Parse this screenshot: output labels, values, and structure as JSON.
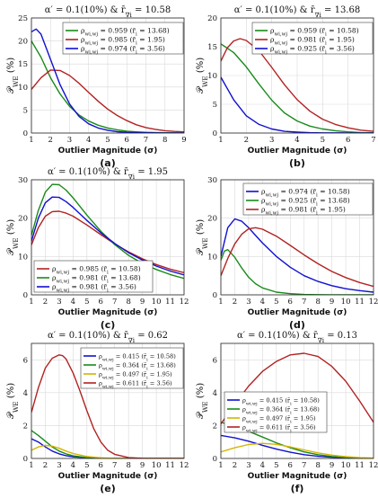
{
  "figure": {
    "xlabel": "Outlier Magnitude (σ)",
    "ylabel": "𝒫_WE (%)"
  },
  "chart_data": [
    {
      "panel": "(a)",
      "type": "line",
      "title": "α′ = 0.1(10%) & r̄_∇i = 10.58",
      "xlabel": "Outlier Magnitude (σ)",
      "ylabel": "𝒫_WE (%)",
      "xlim": [
        1,
        9
      ],
      "ylim": [
        0,
        25
      ],
      "xticks": [
        1,
        2,
        3,
        4,
        5,
        6,
        7,
        8,
        9
      ],
      "yticks": [
        0,
        5,
        10,
        15,
        20,
        25
      ],
      "grid": true,
      "legend_position": "top-right",
      "series": [
        {
          "name": "ρ_wi,wj = 0.959 (r̄_i = 13.68)",
          "color": "#1a8a1a",
          "x": [
            1,
            1.5,
            2,
            2.5,
            3,
            3.5,
            4,
            4.5,
            5,
            5.5,
            6,
            6.5,
            7,
            7.5,
            8,
            8.5,
            9
          ],
          "y": [
            20,
            16.5,
            12,
            8.5,
            5.8,
            3.9,
            2.6,
            1.7,
            1.1,
            0.7,
            0.4,
            0.25,
            0.15,
            0.1,
            0.05,
            0.03,
            0.02
          ]
        },
        {
          "name": "ρ_wi,wj = 0.985 (r̄_i = 1.95)",
          "color": "#b22222",
          "x": [
            1,
            1.5,
            2,
            2.5,
            3,
            3.5,
            4,
            4.5,
            5,
            5.5,
            6,
            6.5,
            7,
            7.5,
            8,
            8.5,
            9
          ],
          "y": [
            9.5,
            12,
            13.7,
            13.6,
            12.5,
            10.8,
            8.8,
            6.9,
            5.2,
            3.8,
            2.7,
            1.8,
            1.2,
            0.8,
            0.5,
            0.35,
            0.25
          ]
        },
        {
          "name": "ρ_wi,wj = 0.974 (r̄_i = 3.56)",
          "color": "#1010d0",
          "x": [
            1,
            1.25,
            1.5,
            2,
            2.5,
            3,
            3.5,
            4,
            4.5,
            5,
            5.5,
            6,
            7,
            8,
            9
          ],
          "y": [
            22,
            22.6,
            21.5,
            16,
            10.5,
            6.3,
            3.6,
            2,
            1.1,
            0.6,
            0.3,
            0.15,
            0.05,
            0.02,
            0.01
          ]
        }
      ]
    },
    {
      "panel": "(b)",
      "type": "line",
      "title": "α′ = 0.1(10%) & r̄_∇i = 13.68",
      "xlabel": "Outlier Magnitude (σ)",
      "ylabel": "𝒫_WE (%)",
      "xlim": [
        1,
        7
      ],
      "ylim": [
        0,
        20
      ],
      "xticks": [
        1,
        2,
        3,
        4,
        5,
        6,
        7
      ],
      "yticks": [
        0,
        5,
        10,
        15,
        20
      ],
      "grid": true,
      "legend_position": "top-right",
      "series": [
        {
          "name": "ρ_wi,wj = 0.959 (r̄_i = 10.58)",
          "color": "#1a8a1a",
          "x": [
            1,
            1.5,
            2,
            2.5,
            3,
            3.5,
            4,
            4.5,
            5,
            5.5,
            6,
            6.5,
            7
          ],
          "y": [
            15.5,
            14,
            11.5,
            8.5,
            5.7,
            3.5,
            2.1,
            1.2,
            0.7,
            0.4,
            0.2,
            0.1,
            0.05
          ]
        },
        {
          "name": "ρ_wi,wj = 0.981 (r̄_i = 1.95)",
          "color": "#b22222",
          "x": [
            1,
            1.25,
            1.5,
            1.75,
            2,
            2.5,
            3,
            3.5,
            4,
            4.5,
            5,
            5.5,
            6,
            6.5,
            7
          ],
          "y": [
            12.5,
            14.8,
            16,
            16.4,
            16.1,
            14.3,
            11.4,
            8.4,
            5.8,
            3.8,
            2.4,
            1.5,
            0.9,
            0.5,
            0.3
          ]
        },
        {
          "name": "ρ_wi,wj = 0.925 (r̄_i = 3.56)",
          "color": "#1010d0",
          "x": [
            1,
            1.5,
            2,
            2.5,
            3,
            3.5,
            4,
            4.5,
            5,
            6,
            7
          ],
          "y": [
            9.7,
            5.8,
            3,
            1.5,
            0.7,
            0.3,
            0.15,
            0.07,
            0.03,
            0.01,
            0
          ]
        }
      ]
    },
    {
      "panel": "(c)",
      "type": "line",
      "title": "α′ = 0.1(10%) & r̄_∇i = 1.95",
      "xlabel": "Outlier Magnitude (σ)",
      "ylabel": "𝒫_WE (%)",
      "xlim": [
        1,
        12
      ],
      "ylim": [
        0,
        30
      ],
      "xticks": [
        1,
        2,
        3,
        4,
        5,
        6,
        7,
        8,
        9,
        10,
        11,
        12
      ],
      "yticks": [
        0,
        10,
        20,
        30
      ],
      "grid": true,
      "legend_position": "bottom-left",
      "series": [
        {
          "name": "ρ_wi,wj = 0.985 (r̄_i = 10.58)",
          "color": "#b22222",
          "x": [
            1,
            1.5,
            2,
            2.5,
            3,
            3.5,
            4,
            5,
            6,
            7,
            8,
            9,
            10,
            11,
            12
          ],
          "y": [
            13,
            17.5,
            20.5,
            21.7,
            21.8,
            21.3,
            20.5,
            18.2,
            15.7,
            13.3,
            11.2,
            9.4,
            7.9,
            6.7,
            5.8
          ]
        },
        {
          "name": "ρ_wi,wj = 0.981 (r̄_i = 13.68)",
          "color": "#1a8a1a",
          "x": [
            1,
            1.5,
            2,
            2.5,
            3,
            3.5,
            4,
            5,
            6,
            7,
            8,
            9,
            10,
            11,
            12
          ],
          "y": [
            15.5,
            22,
            26.8,
            28.8,
            28.7,
            27.3,
            25.3,
            20.8,
            16.6,
            13.1,
            10.3,
            8.2,
            6.6,
            5.3,
            4.3
          ]
        },
        {
          "name": "ρ_wi,wj = 0.981 (r̄_i = 3.56)",
          "color": "#1010d0",
          "x": [
            1,
            1.5,
            2,
            2.5,
            3,
            3.5,
            4,
            5,
            6,
            7,
            8,
            9,
            10,
            11,
            12
          ],
          "y": [
            14,
            20,
            24,
            25.5,
            25.4,
            24.3,
            22.8,
            19.4,
            16.2,
            13.4,
            11,
            9.1,
            7.5,
            6.2,
            5.2
          ]
        }
      ]
    },
    {
      "panel": "(d)",
      "type": "line",
      "title": "",
      "xlabel": "Outlier Magnitude (σ)",
      "ylabel": "𝒫_WE (%)",
      "xlim": [
        1,
        12
      ],
      "ylim": [
        0,
        30
      ],
      "xticks": [
        1,
        2,
        3,
        4,
        5,
        6,
        7,
        8,
        9,
        10,
        11,
        12
      ],
      "yticks": [
        0,
        10,
        20,
        30
      ],
      "grid": true,
      "legend_position": "top-right",
      "series": [
        {
          "name": "ρ_wi,wj = 0.974 (r̄_i = 10.58)",
          "color": "#1010d0",
          "x": [
            1,
            1.5,
            2,
            2.5,
            3,
            3.5,
            4,
            5,
            6,
            7,
            8,
            9,
            10,
            11,
            12
          ],
          "y": [
            10,
            17.5,
            19.8,
            19.2,
            17.5,
            15.5,
            13.5,
            10,
            7.2,
            5,
            3.5,
            2.4,
            1.6,
            1.1,
            0.7
          ]
        },
        {
          "name": "ρ_wi,wj = 0.925 (r̄_i = 13.68)",
          "color": "#1a8a1a",
          "x": [
            1,
            1.25,
            1.5,
            2,
            2.5,
            3,
            3.5,
            4,
            5,
            6,
            7,
            8,
            9,
            10,
            11,
            12
          ],
          "y": [
            9,
            11.4,
            11.8,
            9.8,
            7,
            4.6,
            2.9,
            1.8,
            0.7,
            0.3,
            0.1,
            0.05,
            0.02,
            0,
            0,
            0
          ]
        },
        {
          "name": "ρ_wi,wj = 0.981 (r̄_i = 1.95)",
          "color": "#b22222",
          "x": [
            1,
            1.5,
            2,
            2.5,
            3,
            3.5,
            4,
            5,
            6,
            7,
            8,
            9,
            10,
            11,
            12
          ],
          "y": [
            5,
            9.5,
            13.3,
            15.8,
            17.2,
            17.5,
            17.1,
            15.3,
            12.9,
            10.4,
            8.1,
            6.1,
            4.5,
            3.2,
            2.2
          ]
        }
      ]
    },
    {
      "panel": "(e)",
      "type": "line",
      "title": "α′ = 0.1(10%) & r̄_∇i = 0.62",
      "xlabel": "Outlier Magnitude (σ)",
      "ylabel": "𝒫_WE (%)",
      "xlim": [
        1,
        12
      ],
      "ylim": [
        0,
        7
      ],
      "xticks": [
        1,
        2,
        3,
        4,
        5,
        6,
        7,
        8,
        9,
        10,
        11,
        12
      ],
      "yticks": [
        0,
        2,
        4,
        6
      ],
      "grid": true,
      "legend_position": "top-right",
      "series": [
        {
          "name": "ρ_wi,wj = 0.415 (r̄_i = 10.58)",
          "color": "#1010d0",
          "x": [
            1,
            1.5,
            2,
            2.5,
            3,
            3.5,
            4,
            5,
            6,
            7,
            8,
            9,
            10,
            11,
            12
          ],
          "y": [
            1.2,
            1,
            0.7,
            0.45,
            0.28,
            0.17,
            0.1,
            0.04,
            0.01,
            0,
            0,
            0,
            0,
            0,
            0
          ]
        },
        {
          "name": "ρ_wi,wj = 0.364 (r̄_i = 13.68)",
          "color": "#1a8a1a",
          "x": [
            1,
            1.5,
            2,
            2.5,
            3,
            3.5,
            4,
            5,
            6,
            7,
            8,
            9,
            10,
            11,
            12
          ],
          "y": [
            1.7,
            1.4,
            1.05,
            0.7,
            0.45,
            0.28,
            0.16,
            0.05,
            0.02,
            0,
            0,
            0,
            0,
            0,
            0
          ]
        },
        {
          "name": "ρ_wi,wj = 0.497 (r̄_i = 1.95)",
          "color": "#d4b400",
          "x": [
            1,
            1.5,
            2,
            2.5,
            3,
            3.5,
            4,
            5,
            6,
            7,
            8,
            9,
            10,
            11,
            12
          ],
          "y": [
            0.5,
            0.7,
            0.8,
            0.75,
            0.62,
            0.45,
            0.3,
            0.12,
            0.04,
            0.01,
            0,
            0,
            0,
            0,
            0
          ]
        },
        {
          "name": "ρ_wi,wj = 0.611 (r̄_i = 3.56)",
          "color": "#b22222",
          "x": [
            1,
            1.5,
            2,
            2.5,
            3,
            3.25,
            3.5,
            4,
            4.5,
            5,
            5.5,
            6,
            6.5,
            7,
            8,
            9,
            10,
            11,
            12
          ],
          "y": [
            2.8,
            4.3,
            5.5,
            6.1,
            6.3,
            6.25,
            6.05,
            5.2,
            4.1,
            2.9,
            1.8,
            1,
            0.5,
            0.25,
            0.05,
            0.01,
            0,
            0,
            0
          ]
        }
      ]
    },
    {
      "panel": "(f)",
      "type": "line",
      "title": "α′ = 0.1(10%) & r̄_∇i = 0.13",
      "xlabel": "Outlier Magnitude (σ)",
      "ylabel": "𝒫_WE (%)",
      "xlim": [
        1,
        12
      ],
      "ylim": [
        0,
        7
      ],
      "xticks": [
        1,
        2,
        3,
        4,
        5,
        6,
        7,
        8,
        9,
        10,
        11,
        12
      ],
      "yticks": [
        0,
        2,
        4,
        6
      ],
      "grid": true,
      "legend_position": "middle-left",
      "series": [
        {
          "name": "ρ_wi,wj = 0.415 (r̄_i = 10.58)",
          "color": "#1010d0",
          "x": [
            1,
            2,
            3,
            4,
            5,
            6,
            7,
            8,
            9,
            10,
            11,
            12
          ],
          "y": [
            1.4,
            1.25,
            1.05,
            0.8,
            0.57,
            0.38,
            0.23,
            0.13,
            0.07,
            0.04,
            0.02,
            0.01
          ]
        },
        {
          "name": "ρ_wi,wj = 0.364 (r̄_i = 13.68)",
          "color": "#1a8a1a",
          "x": [
            1,
            2,
            3,
            4,
            5,
            6,
            7,
            8,
            9,
            10,
            11,
            12
          ],
          "y": [
            2.2,
            1.95,
            1.65,
            1.3,
            0.95,
            0.65,
            0.4,
            0.23,
            0.12,
            0.06,
            0.03,
            0.01
          ]
        },
        {
          "name": "ρ_wi,wj = 0.497 (r̄_i = 1.95)",
          "color": "#d4b400",
          "x": [
            1,
            2,
            3,
            4,
            5,
            6,
            7,
            8,
            9,
            10,
            11,
            12
          ],
          "y": [
            0.4,
            0.65,
            0.85,
            0.92,
            0.86,
            0.7,
            0.52,
            0.34,
            0.2,
            0.11,
            0.05,
            0.02
          ]
        },
        {
          "name": "ρ_wi,wj = 0.611 (r̄_i = 3.56)",
          "color": "#b22222",
          "x": [
            1,
            2,
            3,
            4,
            5,
            6,
            7,
            8,
            9,
            10,
            11,
            12
          ],
          "y": [
            2.1,
            3.3,
            4.4,
            5.3,
            5.9,
            6.3,
            6.4,
            6.2,
            5.6,
            4.7,
            3.5,
            2.2
          ]
        }
      ]
    }
  ]
}
